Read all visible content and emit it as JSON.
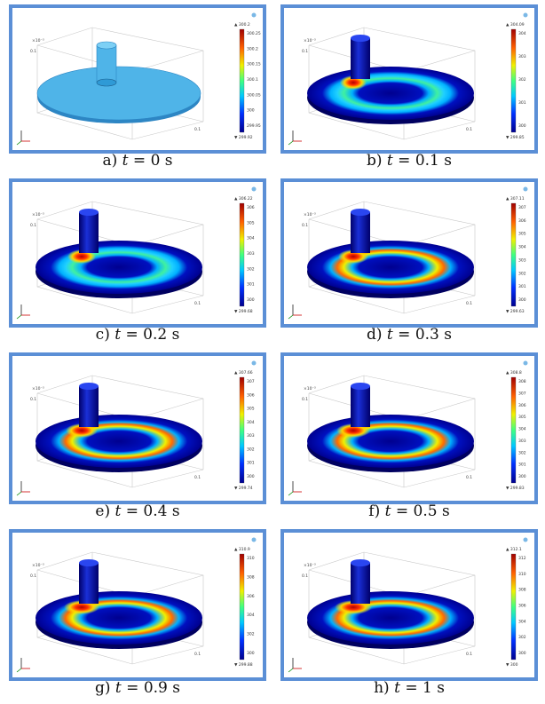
{
  "figure": {
    "panels": [
      {
        "letter": "a)",
        "time": "0",
        "unit": "s",
        "colorbar_max": "300.2",
        "colorbar_min": "299.92",
        "ticks": [
          "300.25",
          "300.2",
          "300.15",
          "300.1",
          "300.05",
          "300",
          "299.95"
        ],
        "state": "initial"
      },
      {
        "letter": "b)",
        "time": "0.1",
        "unit": "s",
        "colorbar_max": "304.09",
        "colorbar_min": "299.85",
        "ticks": [
          "304",
          "303",
          "302",
          "301",
          "300"
        ],
        "state": "heating"
      },
      {
        "letter": "c)",
        "time": "0.2",
        "unit": "s",
        "colorbar_max": "306.22",
        "colorbar_min": "299.68",
        "ticks": [
          "306",
          "305",
          "304",
          "303",
          "302",
          "301",
          "300"
        ],
        "state": "heating"
      },
      {
        "letter": "d)",
        "time": "0.3",
        "unit": "s",
        "colorbar_max": "307.11",
        "colorbar_min": "299.63",
        "ticks": [
          "307",
          "306",
          "305",
          "304",
          "303",
          "302",
          "301",
          "300"
        ],
        "state": "heating"
      },
      {
        "letter": "e)",
        "time": "0.4",
        "unit": "s",
        "colorbar_max": "307.66",
        "colorbar_min": "299.74",
        "ticks": [
          "307",
          "306",
          "305",
          "304",
          "303",
          "302",
          "301",
          "300"
        ],
        "state": "heating"
      },
      {
        "letter": "f)",
        "time": "0.5",
        "unit": "s",
        "colorbar_max": "308.8",
        "colorbar_min": "299.83",
        "ticks": [
          "308",
          "307",
          "306",
          "305",
          "304",
          "303",
          "302",
          "301",
          "300"
        ],
        "state": "heating"
      },
      {
        "letter": "g)",
        "time": "0.9",
        "unit": "s",
        "colorbar_max": "310.9",
        "colorbar_min": "299.88",
        "ticks": [
          "310",
          "308",
          "306",
          "304",
          "302",
          "300"
        ],
        "state": "heating"
      },
      {
        "letter": "h)",
        "time": "1",
        "unit": "s",
        "colorbar_max": "312.1",
        "colorbar_min": "300",
        "ticks": [
          "312",
          "310",
          "308",
          "306",
          "304",
          "302",
          "300"
        ],
        "state": "heating"
      }
    ],
    "time_symbol": "t",
    "equals": "=",
    "axis_exponent": "×10⁻³",
    "axis_tick": "0.1",
    "colors": {
      "frame": "#5b8fd6",
      "cold": "#00008f",
      "hot": "#b00000",
      "initial": "#4fb4e8"
    }
  }
}
